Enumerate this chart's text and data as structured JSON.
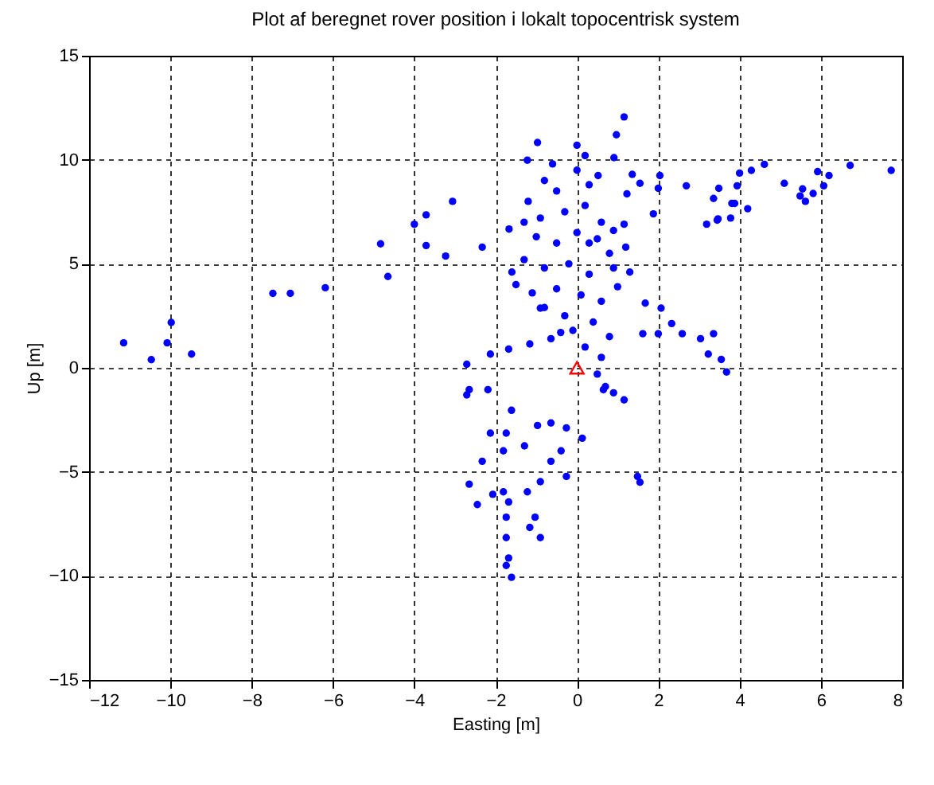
{
  "chart_data": {
    "type": "scatter",
    "title": "Plot af beregnet rover position i lokalt topocentrisk system",
    "xlabel": "Easting [m]",
    "ylabel": "Up [m]",
    "xlim": [
      -12,
      8
    ],
    "ylim": [
      -15,
      15
    ],
    "xticks": [
      -12,
      -10,
      -8,
      -6,
      -4,
      -2,
      0,
      2,
      4,
      6,
      8
    ],
    "yticks": [
      -15,
      -10,
      -5,
      0,
      5,
      10,
      15
    ],
    "grid": true,
    "series": [
      {
        "color": "#0000ff",
        "marker": "circle",
        "x": [
          -11.15,
          -10.47,
          -10.08,
          -9.98,
          -9.48,
          -7.48,
          -7.05,
          -6.19,
          -4.83,
          -4.65,
          -4.0,
          -3.71,
          -3.06,
          -3.71,
          -3.23,
          -2.33,
          -1.67,
          -0.97,
          -1.22,
          0,
          1.16,
          0.97,
          0.91,
          0.52,
          1.36,
          1.55,
          2.04,
          2.0,
          2.69,
          1.23,
          1.88,
          1.16,
          3.19,
          3.47,
          3.36,
          3.88,
          4.0,
          3.49,
          3.81,
          3.94,
          4.29,
          4.61,
          4.2,
          3.78,
          3.45,
          5.1,
          5.49,
          5.62,
          5.81,
          6.07,
          6.2,
          5.92,
          6.72,
          7.73,
          5.55,
          1.68,
          2.07,
          2.33,
          2.0,
          1.62,
          2.59,
          3.04,
          3.36,
          3.23,
          3.68,
          3.55,
          -2.71,
          -2.65,
          -2.13,
          -1.68,
          -1.16,
          -0.64,
          -0.9,
          -2.71,
          -2.19,
          -1.61,
          -1.74,
          -2.13,
          -0.97,
          -0.64,
          -0.26,
          0.13,
          -1.29,
          -1.81,
          -2.33,
          -0.39,
          -0.64,
          -0.26,
          -0.9,
          -2.65,
          -2.45,
          -1.81,
          -1.68,
          -1.22,
          -1.03,
          -0.9,
          -1.16,
          -1.74,
          -1.74,
          -1.68,
          -1.61,
          -1.74,
          1.49,
          1.55,
          1.16,
          0.65,
          -2.07,
          -0.8,
          -0.5,
          0,
          0.3,
          -1.2,
          -0.9,
          -0.3,
          0.2,
          0.6,
          -1.0,
          -0.5,
          0,
          0.5,
          0.8,
          -1.3,
          -0.8,
          -0.2,
          0.3,
          0.9,
          1.3,
          -1.5,
          -1.1,
          -0.5,
          0.1,
          0.6,
          1.0,
          -0.8,
          -0.3,
          0.4,
          0.8,
          -0.4,
          0.2,
          0.6,
          0.5,
          0.7,
          0.9,
          -0.1,
          -1.6,
          1.2,
          0.9,
          -1.3,
          -0.6,
          0.2,
          0.3
        ],
        "values": [
          1.2,
          0.39,
          1.2,
          2.18,
          0.66,
          3.58,
          3.58,
          3.85,
          5.96,
          4.39,
          6.9,
          7.35,
          8.0,
          5.88,
          5.37,
          5.8,
          6.67,
          10.83,
          9.98,
          10.7,
          12.06,
          11.2,
          10.1,
          9.24,
          9.3,
          8.87,
          9.24,
          8.63,
          8.75,
          8.36,
          7.4,
          6.9,
          6.9,
          7.16,
          8.14,
          7.9,
          9.36,
          8.63,
          7.9,
          8.75,
          9.49,
          9.78,
          7.65,
          7.2,
          7.1,
          8.87,
          8.26,
          8.0,
          8.38,
          8.75,
          9.24,
          9.43,
          9.73,
          9.49,
          8.6,
          3.11,
          2.87,
          2.13,
          1.64,
          1.64,
          1.64,
          1.4,
          1.64,
          0.66,
          -0.2,
          0.4,
          0.17,
          -1.05,
          0.66,
          0.9,
          1.15,
          1.4,
          2.87,
          -1.3,
          -1.05,
          -2.04,
          -3.14,
          -3.14,
          -2.77,
          -2.65,
          -2.89,
          -3.38,
          -3.75,
          -3.99,
          -4.49,
          -3.99,
          -4.49,
          -5.22,
          -5.47,
          -5.59,
          -6.57,
          -5.96,
          -6.45,
          -5.96,
          -7.18,
          -8.16,
          -7.67,
          -7.18,
          -8.16,
          -9.14,
          -10.07,
          -9.5,
          -5.22,
          -5.5,
          -1.54,
          -1.05,
          -6.08,
          9.0,
          8.5,
          9.5,
          8.8,
          8.0,
          7.2,
          7.5,
          7.8,
          7.0,
          6.3,
          6.0,
          6.5,
          6.2,
          5.5,
          5.2,
          4.8,
          5.0,
          4.5,
          4.8,
          4.6,
          4.0,
          3.6,
          3.8,
          3.5,
          3.2,
          3.9,
          2.9,
          2.5,
          2.2,
          1.5,
          1.7,
          1.0,
          0.5,
          -0.3,
          -0.9,
          -1.2,
          1.8,
          4.6,
          5.8,
          6.6,
          7.0,
          9.8,
          10.2,
          6.0
        ]
      },
      {
        "color": "#ff0000",
        "marker": "triangle",
        "x": [
          0
        ],
        "values": [
          0
        ]
      }
    ]
  }
}
